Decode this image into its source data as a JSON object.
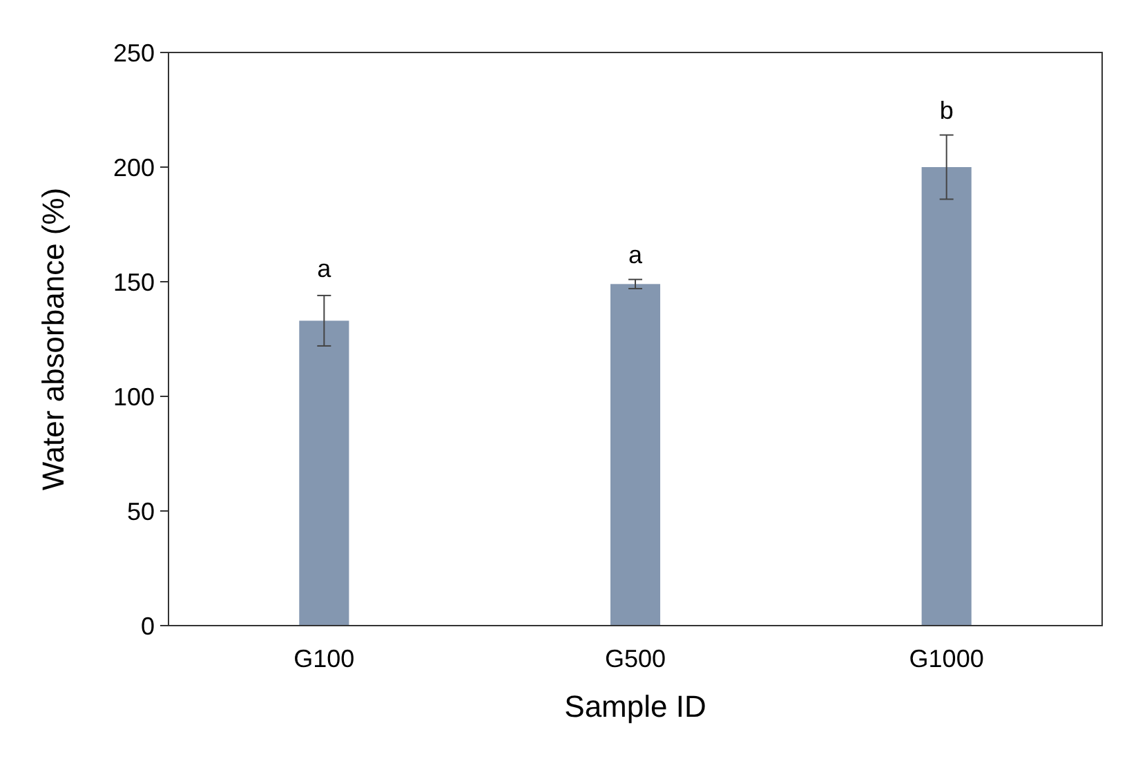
{
  "chart_data": {
    "type": "bar",
    "xlabel": "Sample ID",
    "ylabel": "Water absorbance (%)",
    "categories": [
      "G100",
      "G500",
      "G1000"
    ],
    "values": [
      133,
      149,
      200
    ],
    "errors": [
      11,
      2,
      14
    ],
    "color": "#8497b0",
    "ylim": [
      0,
      250
    ],
    "yticks": [
      0,
      50,
      100,
      150,
      200,
      250
    ],
    "grid": false,
    "annotations": [
      {
        "text": "a",
        "x": "G100",
        "y": 145
      },
      {
        "text": "a",
        "x": "G500",
        "y": 151
      },
      {
        "text": "b",
        "x": "G1000",
        "y": 214
      }
    ]
  }
}
